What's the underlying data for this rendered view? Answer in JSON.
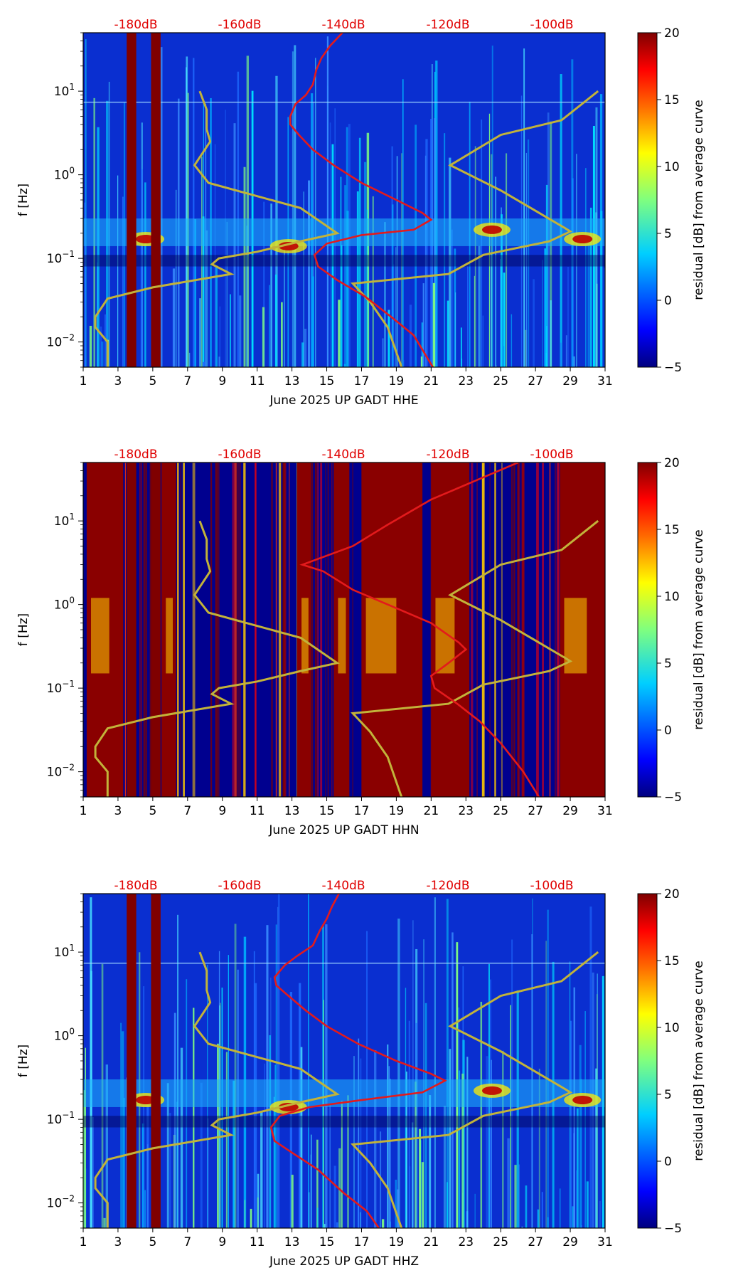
{
  "chart_data": [
    {
      "type": "heatmap",
      "station_label": "June 2025 UP GADT  HHE",
      "xlabel": "June 2025 UP GADT  HHE",
      "ylabel": "f [Hz]",
      "x_ticks": [
        "1",
        "3",
        "5",
        "7",
        "9",
        "11",
        "13",
        "15",
        "17",
        "19",
        "21",
        "23",
        "25",
        "27",
        "29",
        "31"
      ],
      "xlim": [
        1,
        31
      ],
      "ylim": [
        0.005,
        50
      ],
      "y_ticks": [
        {
          "value": 10,
          "label": "10^1"
        },
        {
          "value": 1,
          "label": "10^0"
        },
        {
          "value": 0.1,
          "label": "10^-1"
        },
        {
          "value": 0.01,
          "label": "10^-2"
        }
      ],
      "top_labels": [
        "-180dB",
        "-160dB",
        "-140dB",
        "-120dB",
        "-100dB"
      ],
      "colorbar": {
        "label": "residual [dB] from average curve",
        "min": -5,
        "max": 20,
        "ticks": [
          "20",
          "15",
          "10",
          "5",
          "0",
          "−5"
        ]
      },
      "gaps_days": [
        [
          3.5,
          4.05
        ],
        [
          4.9,
          5.45
        ]
      ],
      "avg_curve_red": {
        "name": "average PSD curve",
        "points": [
          [
            15.9,
            50
          ],
          [
            15.2,
            35
          ],
          [
            14.7,
            25
          ],
          [
            14.4,
            18
          ],
          [
            14.2,
            12
          ],
          [
            13.8,
            9
          ],
          [
            13.2,
            7
          ],
          [
            12.9,
            5
          ],
          [
            12.9,
            4
          ],
          [
            13.4,
            3
          ],
          [
            14.2,
            2
          ],
          [
            15.4,
            1.3
          ],
          [
            17.0,
            0.8
          ],
          [
            19.0,
            0.5
          ],
          [
            20.5,
            0.35
          ],
          [
            21.0,
            0.29
          ],
          [
            20.0,
            0.22
          ],
          [
            17.0,
            0.19
          ],
          [
            15.0,
            0.15
          ],
          [
            14.3,
            0.11
          ],
          [
            14.5,
            0.08
          ],
          [
            15.6,
            0.055
          ],
          [
            17.2,
            0.035
          ],
          [
            18.7,
            0.02
          ],
          [
            20.0,
            0.012
          ],
          [
            21.1,
            0.005
          ]
        ]
      },
      "nlnm_nhnm_olive": {
        "name": "noise model curve",
        "points": [
          [
            7.7,
            10
          ],
          [
            8.1,
            6
          ],
          [
            8.1,
            3.5
          ],
          [
            8.3,
            2.5
          ],
          [
            7.4,
            1.3
          ],
          [
            8.2,
            0.8
          ],
          [
            13.5,
            0.4
          ],
          [
            15.6,
            0.2
          ],
          [
            13.5,
            0.16
          ],
          [
            11.0,
            0.12
          ],
          [
            8.8,
            0.1
          ],
          [
            8.4,
            0.085
          ],
          [
            9.5,
            0.065
          ],
          [
            5.0,
            0.045
          ],
          [
            2.4,
            0.033
          ],
          [
            1.7,
            0.02
          ],
          [
            1.7,
            0.015
          ],
          [
            2.4,
            0.01
          ],
          [
            2.4,
            0.005
          ]
        ]
      },
      "nhnm_olive_right": {
        "name": "noise model curve right",
        "points": [
          [
            30.6,
            10
          ],
          [
            28.5,
            4.5
          ],
          [
            25.0,
            3.0
          ],
          [
            22.1,
            1.3
          ],
          [
            25.0,
            0.65
          ],
          [
            28.7,
            0.23
          ],
          [
            29.0,
            0.21
          ],
          [
            27.8,
            0.16
          ],
          [
            24.0,
            0.11
          ],
          [
            22.0,
            0.065
          ],
          [
            16.5,
            0.05
          ],
          [
            17.5,
            0.03
          ],
          [
            18.5,
            0.015
          ],
          [
            19.3,
            0.005
          ]
        ]
      }
    },
    {
      "type": "heatmap",
      "station_label": "June 2025 UP GADT  HHN",
      "xlabel": "June 2025 UP GADT  HHN",
      "ylabel": "f [Hz]",
      "x_ticks": [
        "1",
        "3",
        "5",
        "7",
        "9",
        "11",
        "13",
        "15",
        "17",
        "19",
        "21",
        "23",
        "25",
        "27",
        "29",
        "31"
      ],
      "xlim": [
        1,
        31
      ],
      "ylim": [
        0.005,
        50
      ],
      "y_ticks": [
        {
          "value": 10,
          "label": "10^1"
        },
        {
          "value": 1,
          "label": "10^0"
        },
        {
          "value": 0.1,
          "label": "10^-1"
        },
        {
          "value": 0.01,
          "label": "10^-2"
        }
      ],
      "top_labels": [
        "-180dB",
        "-160dB",
        "-140dB",
        "-120dB",
        "-100dB"
      ],
      "colorbar": {
        "label": "residual [dB] from average curve",
        "min": -5,
        "max": 20,
        "ticks": [
          "20",
          "15",
          "10",
          "5",
          "0",
          "−5"
        ]
      },
      "gaps_days": [
        [
          3.5,
          4.05
        ],
        [
          4.9,
          5.45
        ]
      ],
      "avg_curve_red": {
        "name": "average PSD curve",
        "points": [
          [
            26.0,
            50
          ],
          [
            23.5,
            30
          ],
          [
            21.0,
            18
          ],
          [
            18.5,
            9
          ],
          [
            16.5,
            5
          ],
          [
            13.6,
            3.0
          ],
          [
            14.8,
            2.5
          ],
          [
            16.5,
            1.5
          ],
          [
            18.5,
            1.0
          ],
          [
            21.0,
            0.6
          ],
          [
            22.6,
            0.35
          ],
          [
            23.0,
            0.29
          ],
          [
            22.0,
            0.2
          ],
          [
            21.0,
            0.14
          ],
          [
            21.2,
            0.1
          ],
          [
            22.5,
            0.065
          ],
          [
            23.8,
            0.04
          ],
          [
            25.0,
            0.022
          ],
          [
            26.3,
            0.01
          ],
          [
            27.2,
            0.005
          ]
        ]
      },
      "nlnm_nhnm_olive": {
        "name": "noise model curve",
        "points": [
          [
            7.7,
            10
          ],
          [
            8.1,
            6
          ],
          [
            8.1,
            3.5
          ],
          [
            8.3,
            2.5
          ],
          [
            7.4,
            1.3
          ],
          [
            8.2,
            0.8
          ],
          [
            13.5,
            0.4
          ],
          [
            15.6,
            0.2
          ],
          [
            13.5,
            0.16
          ],
          [
            11.0,
            0.12
          ],
          [
            8.8,
            0.1
          ],
          [
            8.4,
            0.085
          ],
          [
            9.5,
            0.065
          ],
          [
            5.0,
            0.045
          ],
          [
            2.4,
            0.033
          ],
          [
            1.7,
            0.02
          ],
          [
            1.7,
            0.015
          ],
          [
            2.4,
            0.01
          ],
          [
            2.4,
            0.005
          ]
        ]
      },
      "nhnm_olive_right": {
        "name": "noise model curve right",
        "points": [
          [
            30.6,
            10
          ],
          [
            28.5,
            4.5
          ],
          [
            25.0,
            3.0
          ],
          [
            22.1,
            1.3
          ],
          [
            25.0,
            0.65
          ],
          [
            28.7,
            0.23
          ],
          [
            29.0,
            0.21
          ],
          [
            27.8,
            0.16
          ],
          [
            24.0,
            0.11
          ],
          [
            22.0,
            0.065
          ],
          [
            16.5,
            0.05
          ],
          [
            17.5,
            0.03
          ],
          [
            18.5,
            0.015
          ],
          [
            19.3,
            0.005
          ]
        ]
      }
    },
    {
      "type": "heatmap",
      "station_label": "June 2025 UP GADT  HHZ",
      "xlabel": "June 2025 UP GADT  HHZ",
      "ylabel": "f [Hz]",
      "x_ticks": [
        "1",
        "3",
        "5",
        "7",
        "9",
        "11",
        "13",
        "15",
        "17",
        "19",
        "21",
        "23",
        "25",
        "27",
        "29",
        "31"
      ],
      "xlim": [
        1,
        31
      ],
      "ylim": [
        0.005,
        50
      ],
      "y_ticks": [
        {
          "value": 10,
          "label": "10^1"
        },
        {
          "value": 1,
          "label": "10^0"
        },
        {
          "value": 0.1,
          "label": "10^-1"
        },
        {
          "value": 0.01,
          "label": "10^-2"
        }
      ],
      "top_labels": [
        "-180dB",
        "-160dB",
        "-140dB",
        "-120dB",
        "-100dB"
      ],
      "colorbar": {
        "label": "residual [dB] from average curve",
        "min": -5,
        "max": 20,
        "ticks": [
          "20",
          "15",
          "10",
          "5",
          "0",
          "−5"
        ]
      },
      "gaps_days": [
        [
          3.5,
          4.05
        ],
        [
          4.9,
          5.45
        ]
      ],
      "avg_curve_red": {
        "name": "average PSD curve",
        "points": [
          [
            15.7,
            50
          ],
          [
            15.3,
            35
          ],
          [
            15.0,
            25
          ],
          [
            14.6,
            18
          ],
          [
            14.2,
            12
          ],
          [
            13.3,
            9
          ],
          [
            12.6,
            7
          ],
          [
            12.0,
            5
          ],
          [
            12.1,
            4
          ],
          [
            12.8,
            3
          ],
          [
            13.8,
            2
          ],
          [
            15.0,
            1.3
          ],
          [
            16.8,
            0.8
          ],
          [
            19.0,
            0.5
          ],
          [
            21.0,
            0.35
          ],
          [
            21.8,
            0.29
          ],
          [
            20.5,
            0.21
          ],
          [
            17.0,
            0.17
          ],
          [
            14.0,
            0.14
          ],
          [
            12.3,
            0.11
          ],
          [
            11.8,
            0.08
          ],
          [
            12.0,
            0.055
          ],
          [
            13.0,
            0.04
          ],
          [
            14.5,
            0.025
          ],
          [
            16.0,
            0.013
          ],
          [
            17.3,
            0.008
          ],
          [
            18.0,
            0.005
          ]
        ]
      },
      "nlnm_nhnm_olive": {
        "name": "noise model curve",
        "points": [
          [
            7.7,
            10
          ],
          [
            8.1,
            6
          ],
          [
            8.1,
            3.5
          ],
          [
            8.3,
            2.5
          ],
          [
            7.4,
            1.3
          ],
          [
            8.2,
            0.8
          ],
          [
            13.5,
            0.4
          ],
          [
            15.6,
            0.2
          ],
          [
            13.5,
            0.16
          ],
          [
            11.0,
            0.12
          ],
          [
            8.8,
            0.1
          ],
          [
            8.4,
            0.085
          ],
          [
            9.5,
            0.065
          ],
          [
            5.0,
            0.045
          ],
          [
            2.4,
            0.033
          ],
          [
            1.7,
            0.02
          ],
          [
            1.7,
            0.015
          ],
          [
            2.4,
            0.01
          ],
          [
            2.4,
            0.005
          ]
        ]
      },
      "nhnm_olive_right": {
        "name": "noise model curve right",
        "points": [
          [
            30.6,
            10
          ],
          [
            28.5,
            4.5
          ],
          [
            25.0,
            3.0
          ],
          [
            22.1,
            1.3
          ],
          [
            25.0,
            0.65
          ],
          [
            28.7,
            0.23
          ],
          [
            29.0,
            0.21
          ],
          [
            27.8,
            0.16
          ],
          [
            24.0,
            0.11
          ],
          [
            22.0,
            0.065
          ],
          [
            16.5,
            0.05
          ],
          [
            17.5,
            0.03
          ],
          [
            18.5,
            0.015
          ],
          [
            19.3,
            0.005
          ]
        ]
      }
    }
  ],
  "colors": {
    "average_curve": "#e31a1c",
    "model_curve": "#c2b33a",
    "top_label": "#e00000",
    "colormap": [
      "#00007f",
      "#0000ff",
      "#007fff",
      "#00ffff",
      "#7fff7f",
      "#ffff00",
      "#ff7f00",
      "#ff0000",
      "#7f0000"
    ]
  }
}
